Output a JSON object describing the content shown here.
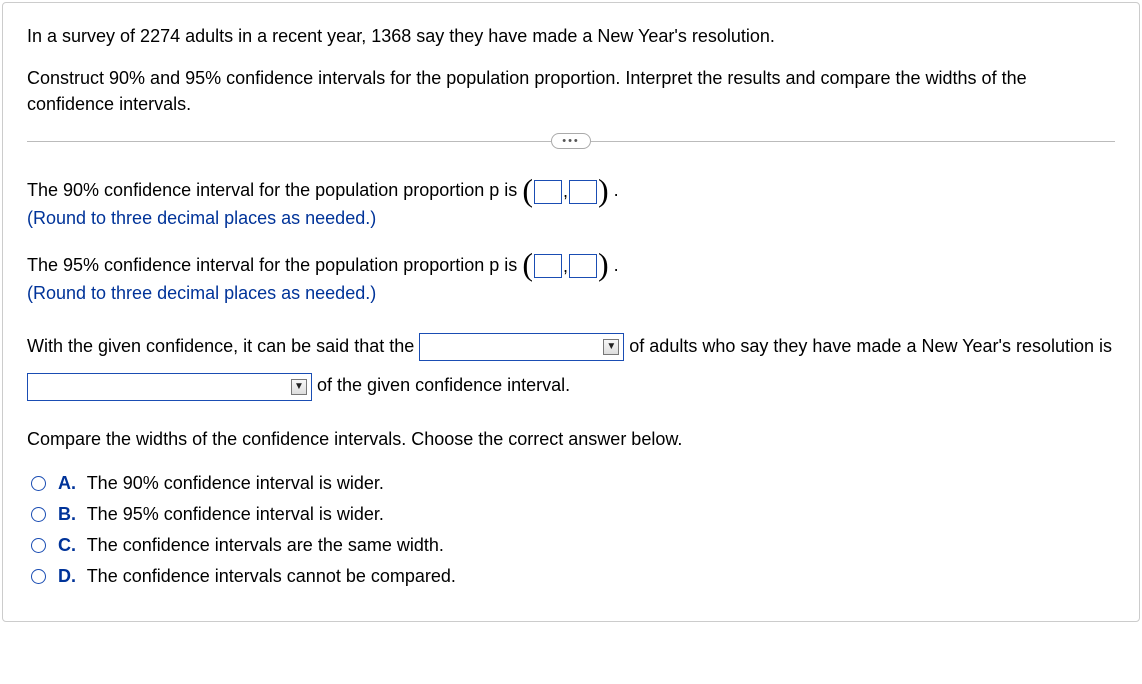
{
  "problem": {
    "line1": "In a survey of 2274 adults in a recent year, 1368 say they have made a New Year's resolution.",
    "line2": "Construct 90% and 95% confidence intervals for the population proportion. Interpret the results and compare the widths of the confidence intervals."
  },
  "q1": {
    "text": "The 90% confidence interval for the population proportion p is",
    "instruction": "(Round to three decimal places as needed.)"
  },
  "q2": {
    "text": "The 95% confidence interval for the population proportion p is",
    "instruction": "(Round to three decimal places as needed.)"
  },
  "interp": {
    "part1": "With the given confidence, it can be said that the",
    "part2": "of adults who say they have made a New Year's resolution is",
    "part3": "of the given confidence interval."
  },
  "compare_prompt": "Compare the widths of the confidence intervals. Choose the correct answer below.",
  "options": [
    {
      "label": "A.",
      "text": "The 90% confidence interval is wider."
    },
    {
      "label": "B.",
      "text": "The 95% confidence interval is wider."
    },
    {
      "label": "C.",
      "text": "The confidence intervals are the same width."
    },
    {
      "label": "D.",
      "text": "The confidence intervals cannot be compared."
    }
  ],
  "colors": {
    "instruction": "#003399",
    "box_border": "#1a4db3"
  },
  "punct": {
    "comma": ",",
    "period": " ."
  }
}
